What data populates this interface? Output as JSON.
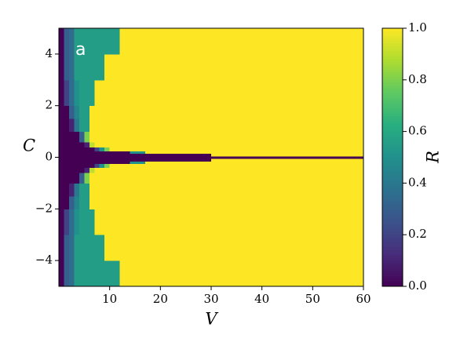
{
  "chart_data": {
    "type": "heatmap",
    "annotation": "a",
    "xlabel": "V",
    "ylabel": "C",
    "colorbar_label": "R",
    "colormap": "viridis",
    "xlim": [
      0,
      60
    ],
    "ylim": [
      -5,
      5
    ],
    "zlim": [
      0,
      1
    ],
    "xticks": [
      10,
      20,
      30,
      40,
      50,
      60
    ],
    "yticks": [
      {
        "value": -4,
        "label": "−4"
      },
      {
        "value": -2,
        "label": "−2"
      },
      0,
      2,
      4
    ],
    "zticks": [
      {
        "value": 0,
        "label": "0.0"
      },
      {
        "value": 0.2,
        "label": "0.2"
      },
      {
        "value": 0.4,
        "label": "0.4"
      },
      {
        "value": 0.6,
        "label": "0.6"
      },
      {
        "value": 0.8,
        "label": "0.8"
      },
      {
        "value": 1,
        "label": "1.0"
      }
    ],
    "x_edges": [
      0,
      1,
      2,
      3,
      4,
      5,
      6,
      7,
      8,
      9,
      10,
      12,
      14,
      17,
      20,
      25,
      30,
      40,
      60
    ],
    "y_edges": [
      -5,
      -4,
      -3,
      -2,
      -1.5,
      -1,
      -0.6,
      -0.4,
      -0.25,
      -0.15,
      -0.05,
      0.05,
      0.15,
      0.25,
      0.4,
      0.6,
      1,
      1.5,
      2,
      3,
      4,
      5
    ],
    "z": [
      [
        0,
        0.3,
        0.35,
        0.55,
        0.55,
        0.55,
        0.55,
        0.55,
        0.55,
        0.55,
        0.55,
        1,
        1,
        1,
        1,
        1,
        1,
        1
      ],
      [
        0,
        0.3,
        0.35,
        0.55,
        0.55,
        0.55,
        0.55,
        0.55,
        0.55,
        1,
        1,
        1,
        1,
        1,
        1,
        1,
        1,
        1
      ],
      [
        0,
        0.2,
        0.35,
        0.5,
        0.55,
        0.55,
        0.55,
        1,
        1,
        1,
        1,
        1,
        1,
        1,
        1,
        1,
        1,
        1
      ],
      [
        0,
        0,
        0.3,
        0.45,
        0.55,
        0.55,
        1,
        1,
        1,
        1,
        1,
        1,
        1,
        1,
        1,
        1,
        1,
        1
      ],
      [
        0,
        0,
        0.1,
        0.4,
        0.55,
        0.55,
        1,
        1,
        1,
        1,
        1,
        1,
        1,
        1,
        1,
        1,
        1,
        1
      ],
      [
        0,
        0,
        0,
        0,
        0.3,
        0.8,
        1,
        1,
        1,
        1,
        1,
        1,
        1,
        1,
        1,
        1,
        1,
        1
      ],
      [
        0,
        0,
        0,
        0,
        0,
        0.1,
        0.9,
        1,
        1,
        1,
        1,
        1,
        1,
        1,
        1,
        1,
        1,
        1
      ],
      [
        0,
        0,
        0,
        0,
        0,
        0,
        0,
        0.2,
        0.5,
        0.8,
        1,
        1,
        1,
        1,
        1,
        1,
        1,
        1
      ],
      [
        0,
        0,
        0,
        0,
        0,
        0,
        0,
        0,
        0,
        0,
        0,
        0,
        0.5,
        1,
        1,
        1,
        1,
        1
      ],
      [
        0,
        0,
        0,
        0,
        0,
        0,
        0,
        0,
        0,
        0,
        0,
        0,
        0,
        0,
        0,
        0,
        1,
        1
      ],
      [
        0,
        0,
        0,
        0,
        0,
        0,
        0,
        0,
        0,
        0,
        0,
        0,
        0,
        0,
        0,
        0,
        0,
        0
      ],
      [
        0,
        0,
        0,
        0,
        0,
        0,
        0,
        0,
        0,
        0,
        0,
        0,
        0,
        0,
        0,
        0,
        1,
        1
      ],
      [
        0,
        0,
        0,
        0,
        0,
        0,
        0,
        0,
        0,
        0,
        0,
        0,
        0.5,
        1,
        1,
        1,
        1,
        1
      ],
      [
        0,
        0,
        0,
        0,
        0,
        0,
        0,
        0.2,
        0.5,
        0.8,
        1,
        1,
        1,
        1,
        1,
        1,
        1,
        1
      ],
      [
        0,
        0,
        0,
        0,
        0,
        0.1,
        0.9,
        1,
        1,
        1,
        1,
        1,
        1,
        1,
        1,
        1,
        1,
        1
      ],
      [
        0,
        0,
        0,
        0,
        0.3,
        0.8,
        1,
        1,
        1,
        1,
        1,
        1,
        1,
        1,
        1,
        1,
        1,
        1
      ],
      [
        0,
        0,
        0.1,
        0.4,
        0.55,
        0.55,
        1,
        1,
        1,
        1,
        1,
        1,
        1,
        1,
        1,
        1,
        1,
        1
      ],
      [
        0,
        0,
        0.3,
        0.45,
        0.55,
        0.55,
        1,
        1,
        1,
        1,
        1,
        1,
        1,
        1,
        1,
        1,
        1,
        1
      ],
      [
        0,
        0.2,
        0.35,
        0.5,
        0.55,
        0.55,
        0.55,
        1,
        1,
        1,
        1,
        1,
        1,
        1,
        1,
        1,
        1,
        1
      ],
      [
        0,
        0.3,
        0.35,
        0.55,
        0.55,
        0.55,
        0.55,
        0.55,
        0.55,
        1,
        1,
        1,
        1,
        1,
        1,
        1,
        1,
        1
      ],
      [
        0,
        0.3,
        0.35,
        0.55,
        0.55,
        0.55,
        0.55,
        0.55,
        0.55,
        0.55,
        0.55,
        1,
        1,
        1,
        1,
        1,
        1,
        1
      ]
    ]
  }
}
